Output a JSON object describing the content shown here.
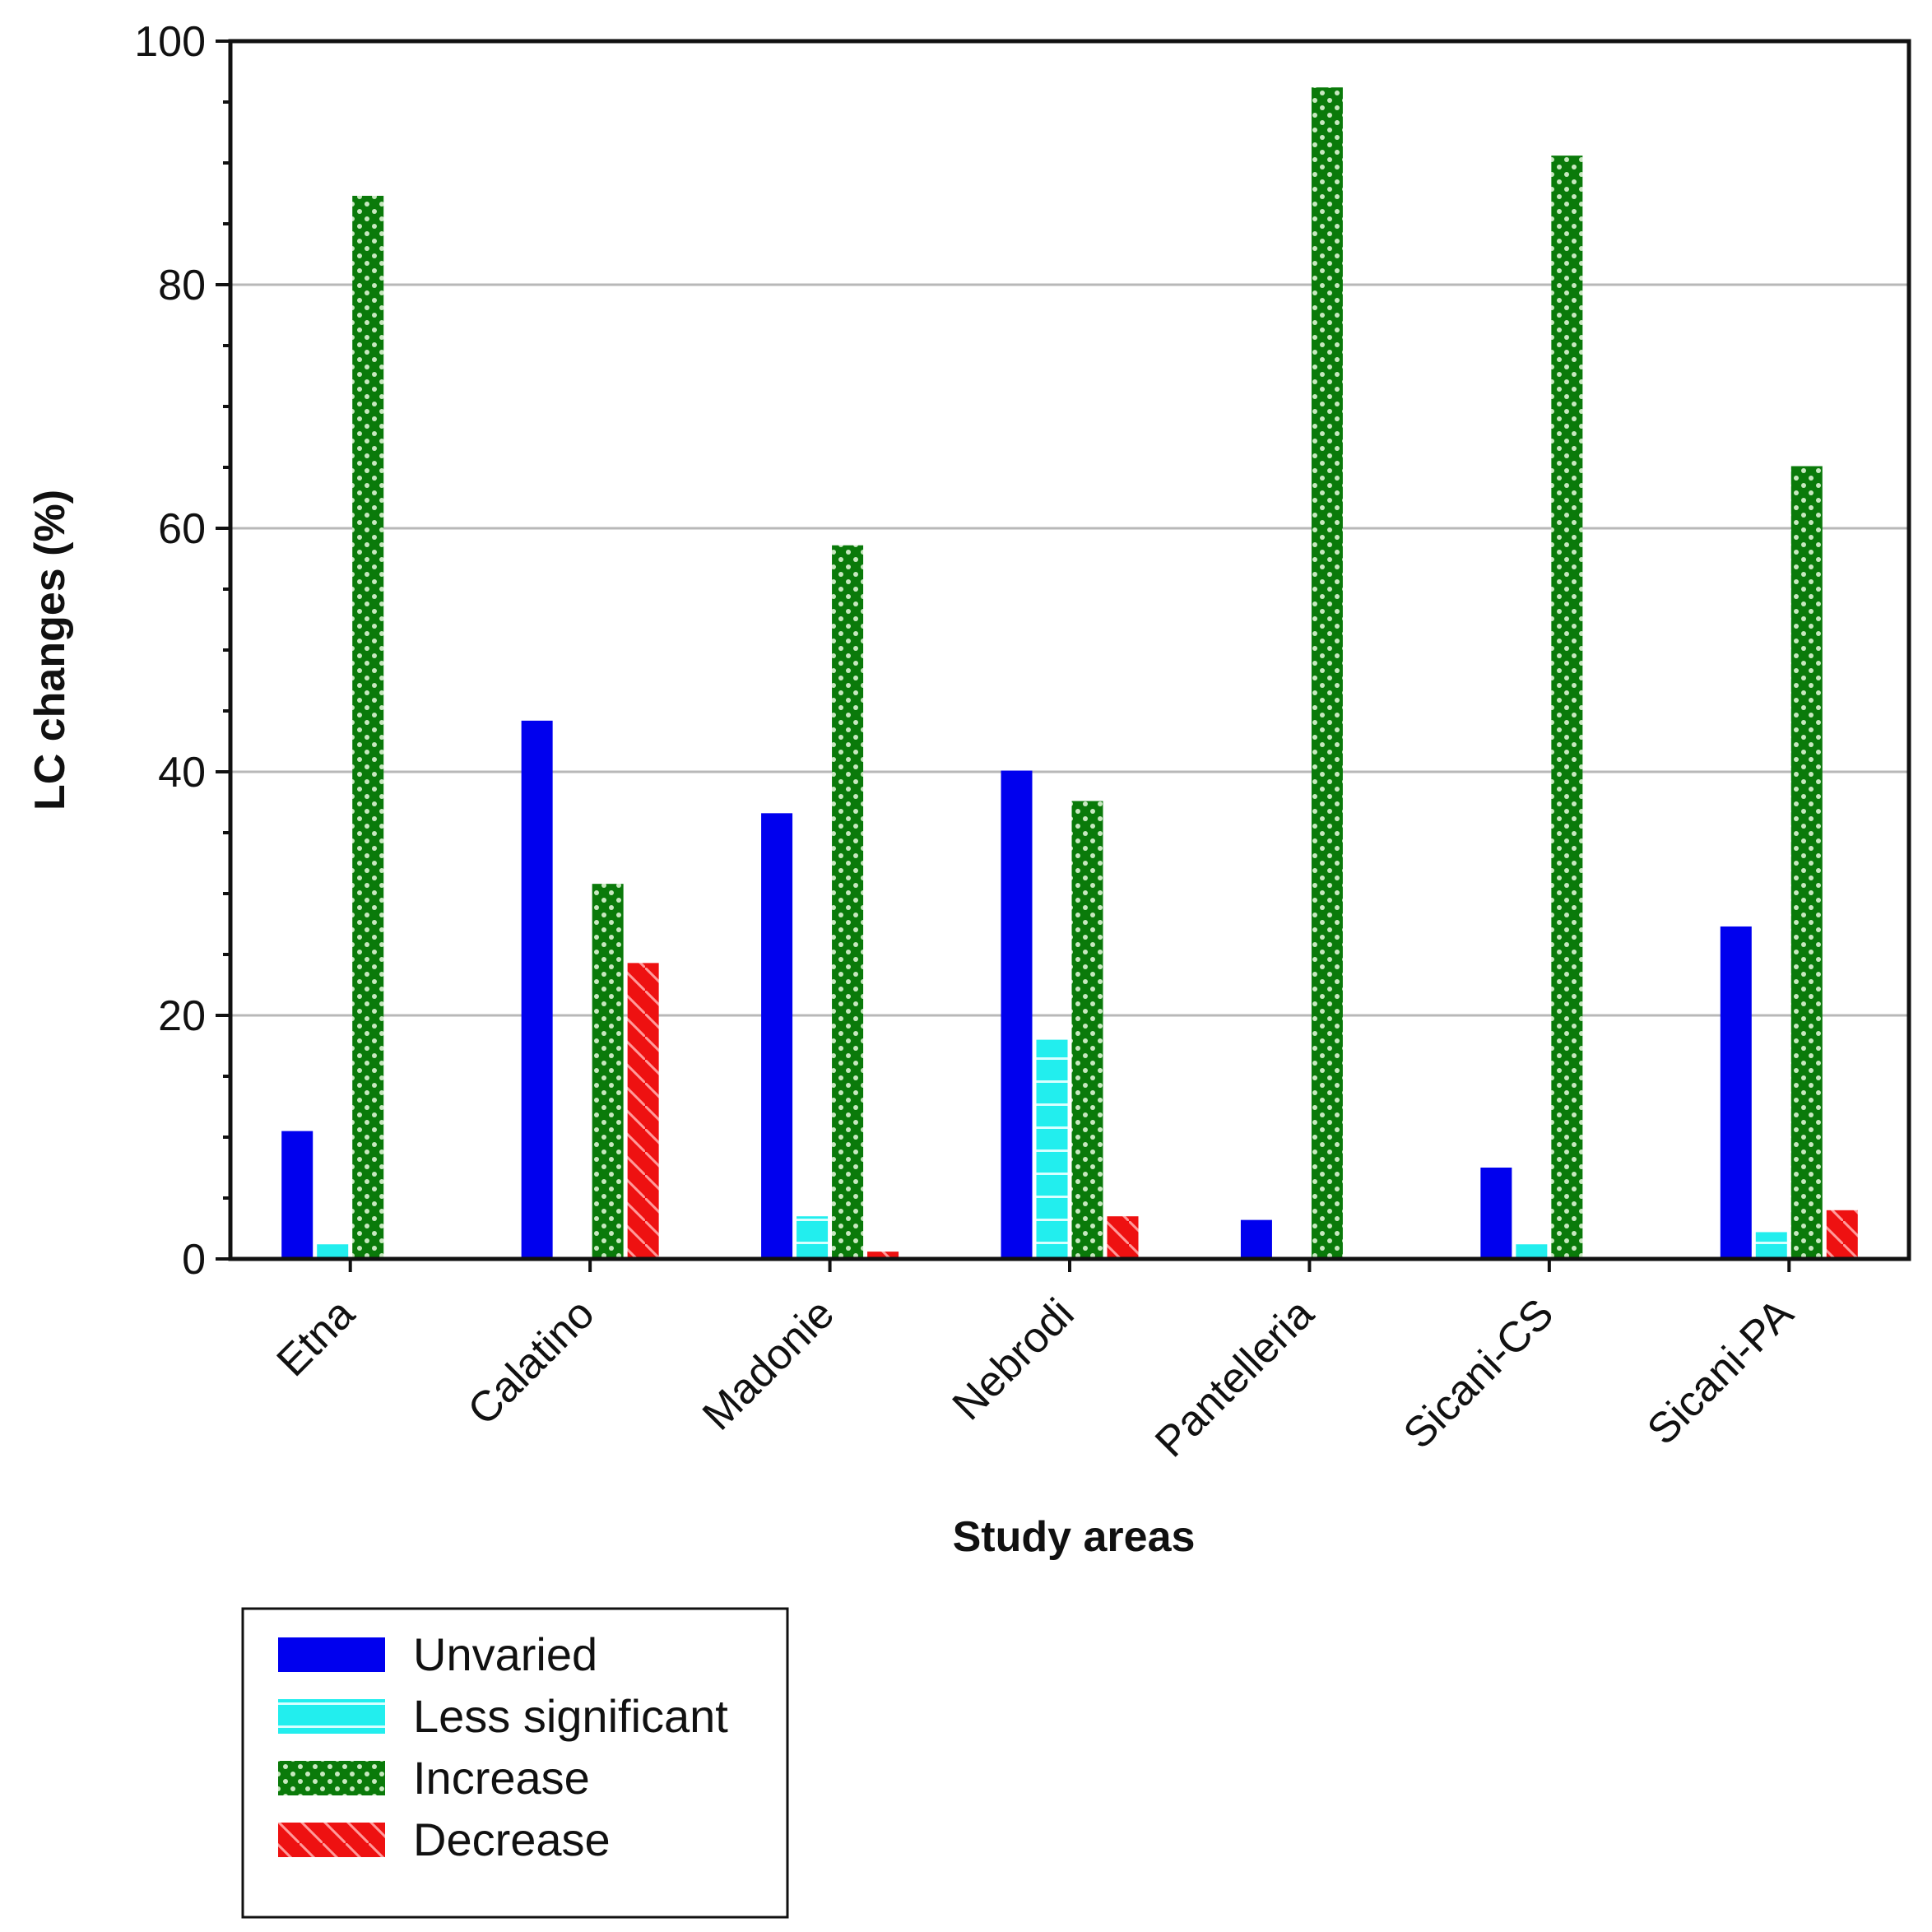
{
  "chart_data": {
    "type": "bar",
    "title": "",
    "xlabel": "Study areas",
    "ylabel": "LC changes (%)",
    "ylim": [
      0,
      100
    ],
    "yticks": [
      0,
      20,
      40,
      60,
      80,
      100
    ],
    "grid": "horizontal",
    "legend_position": "bottom-left",
    "categories": [
      "Etna",
      "Calatino",
      "Madonie",
      "Nebrodi",
      "Pantelleria",
      "Sicani-CS",
      "Sicani-PA"
    ],
    "series": [
      {
        "name": "Unvaried",
        "color": "#0000ee",
        "pattern": "solid",
        "values": [
          10.5,
          44.2,
          36.6,
          40.1,
          3.2,
          7.5,
          27.3
        ]
      },
      {
        "name": "Less significant",
        "color": "#22eeee",
        "pattern": "horizontal-lines",
        "values": [
          1.2,
          0,
          3.5,
          18.0,
          0,
          1.2,
          2.2
        ]
      },
      {
        "name": "Increase",
        "color": "#0a7a0a",
        "pattern": "dots",
        "values": [
          87.3,
          30.8,
          58.6,
          37.6,
          96.2,
          90.6,
          65.1
        ]
      },
      {
        "name": "Decrease",
        "color": "#ee1111",
        "pattern": "diagonal-lines",
        "values": [
          0,
          24.3,
          0.6,
          3.5,
          0,
          0,
          4.0
        ]
      }
    ]
  }
}
